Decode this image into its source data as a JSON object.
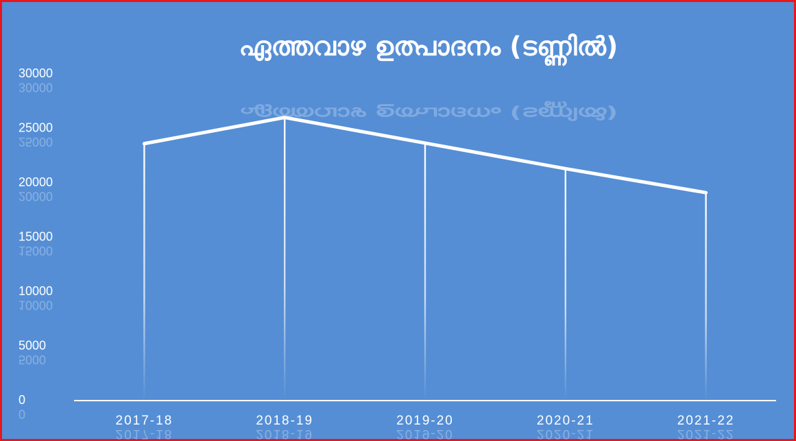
{
  "chart_data": {
    "type": "line",
    "title": "ഏത്തവാഴ ഉത്പാദനം (ടണ്ണിൽ)",
    "categories": [
      "2017-18",
      "2018-19",
      "2019-20",
      "2020-21",
      "2021-22"
    ],
    "values": [
      23600,
      26000,
      23650,
      21300,
      19100
    ],
    "color": "#ffffff",
    "ylim": [
      0,
      30000
    ],
    "yticks": [
      0,
      5000,
      10000,
      15000,
      20000,
      25000,
      30000
    ],
    "drop_lines": true
  }
}
